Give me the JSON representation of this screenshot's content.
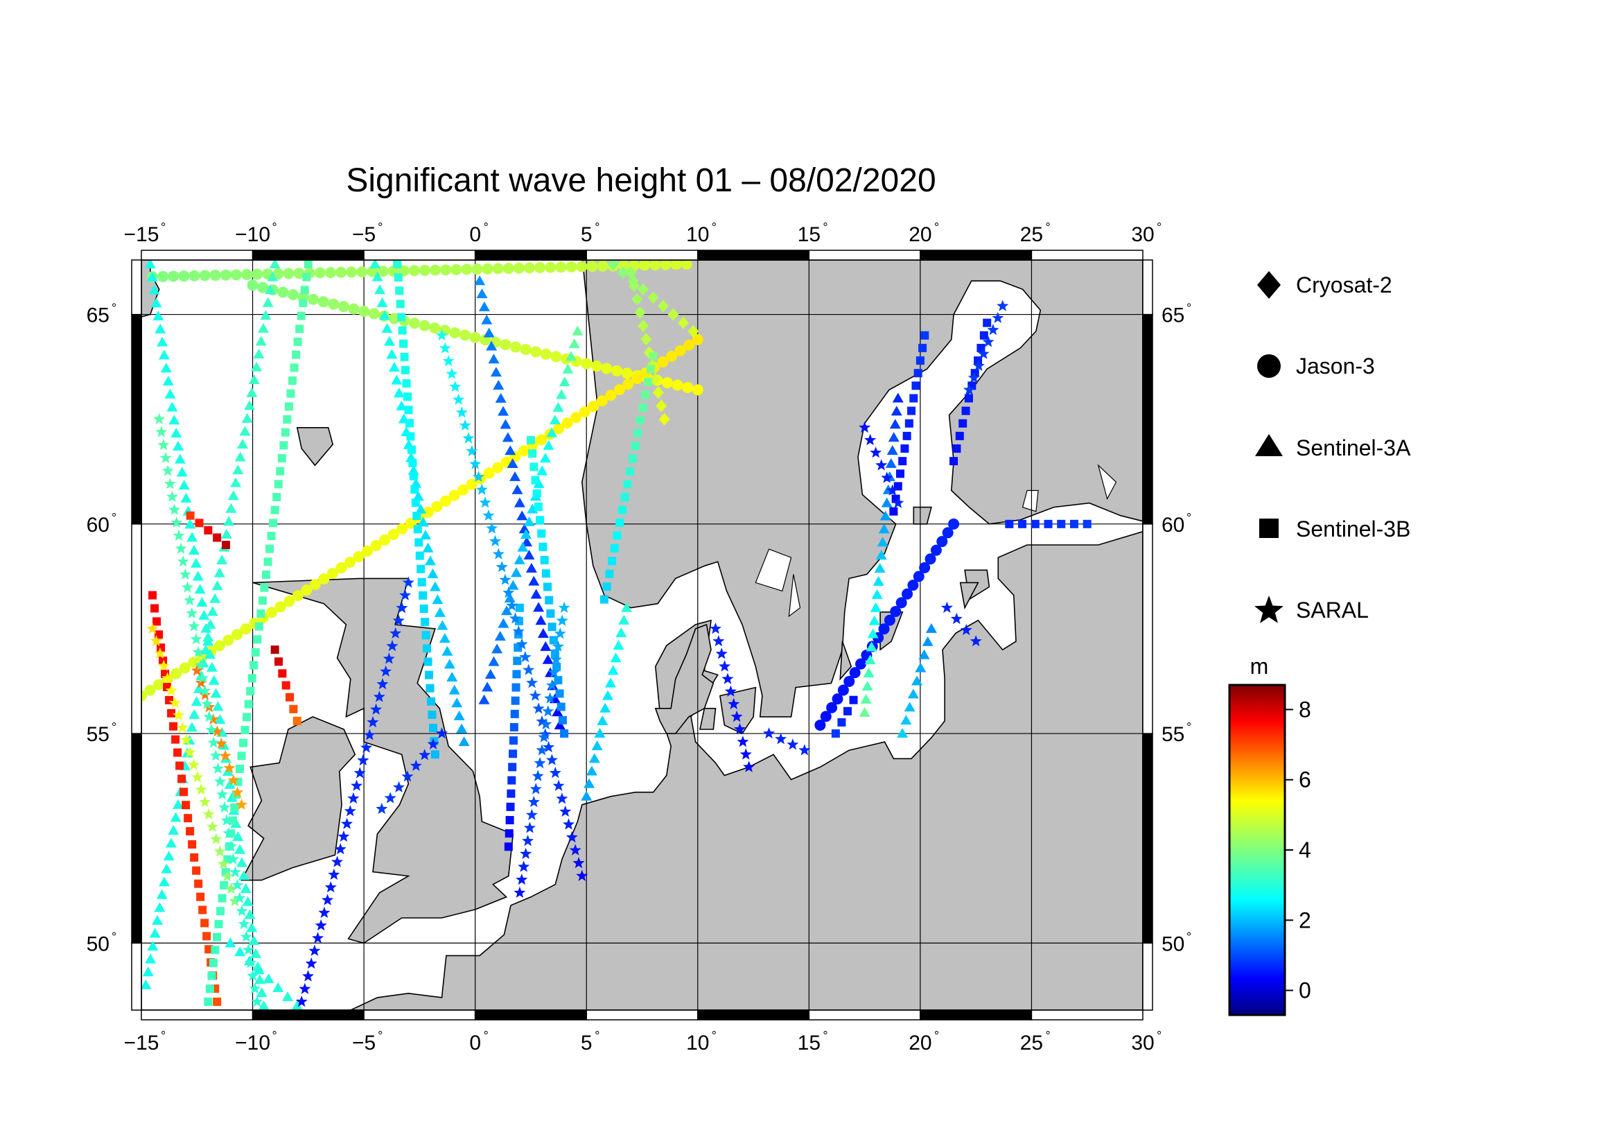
{
  "title": "Significant wave height 01 – 08/02/2020",
  "map": {
    "lon_range": [
      -15,
      30
    ],
    "lat_range": [
      48.4,
      66.3
    ],
    "lon_ticks": [
      -15,
      -10,
      -5,
      0,
      5,
      10,
      15,
      20,
      25,
      30
    ],
    "lat_ticks": [
      50,
      55,
      60,
      65
    ],
    "lon_tick_labels": [
      "−15",
      "−10",
      "−5",
      "0",
      "5",
      "10",
      "15",
      "20",
      "25",
      "30"
    ],
    "lat_tick_labels": [
      "50",
      "55",
      "60",
      "65"
    ],
    "degree_symbol": "°",
    "land_color": "#c0c0c0",
    "water_color": "#ffffff",
    "grid": true
  },
  "legend": {
    "entries": [
      {
        "label": "Cryosat-2",
        "marker": "diamond"
      },
      {
        "label": "Jason-3",
        "marker": "circle"
      },
      {
        "label": "Sentinel-3A",
        "marker": "triangle"
      },
      {
        "label": "Sentinel-3B",
        "marker": "square"
      },
      {
        "label": "SARAL",
        "marker": "star"
      }
    ]
  },
  "colorbar": {
    "unit": "m",
    "min": -0.7,
    "max": 8.7,
    "ticks": [
      0,
      2,
      4,
      6,
      8
    ],
    "tick_labels": [
      "0",
      "2",
      "4",
      "6",
      "8"
    ],
    "colormap": "jet"
  },
  "chart_data": {
    "type": "scatter",
    "x_quantity": "longitude (degrees)",
    "y_quantity": "latitude (degrees)",
    "value_quantity": "significant wave height (m)",
    "series": [
      {
        "name": "Jason-3",
        "marker": "circle",
        "tracks": [
          {
            "from": [
              -14.5,
              65.9
            ],
            "to": [
              9.5,
              66.2
            ],
            "h0": 4.0,
            "h1": 4.8
          },
          {
            "from": [
              -10.0,
              65.7
            ],
            "to": [
              10.0,
              63.2
            ],
            "h0": 4.0,
            "h1": 5.2
          },
          {
            "from": [
              -15.0,
              55.9
            ],
            "to": [
              10.0,
              64.4
            ],
            "h0": 4.8,
            "h1": 5.4
          },
          {
            "from": [
              15.5,
              55.2
            ],
            "to": [
              21.5,
              60.0
            ],
            "h0": 0.6,
            "h1": 0.8
          }
        ]
      },
      {
        "name": "Cryosat-2",
        "marker": "diamond",
        "tracks": [
          {
            "from": [
              6.2,
              66.2
            ],
            "to": [
              9.8,
              64.6
            ],
            "h0": 4.0,
            "h1": 4.8
          },
          {
            "from": [
              7.0,
              66.0
            ],
            "to": [
              8.5,
              62.5
            ],
            "h0": 4.2,
            "h1": 5.0
          }
        ]
      },
      {
        "name": "Sentinel-3A",
        "marker": "triangle",
        "tracks": [
          {
            "from": [
              -14.6,
              66.2
            ],
            "to": [
              -9.5,
              48.5
            ],
            "h0": 3.0,
            "h1": 3.2
          },
          {
            "from": [
              -9.0,
              66.2
            ],
            "to": [
              -14.8,
              49.0
            ],
            "h0": 3.4,
            "h1": 3.0
          },
          {
            "from": [
              -4.5,
              66.2
            ],
            "to": [
              -0.5,
              54.8
            ],
            "h0": 3.2,
            "h1": 2.0
          },
          {
            "from": [
              0.2,
              65.8
            ],
            "to": [
              3.8,
              55.2
            ],
            "h0": 1.8,
            "h1": 0.5
          },
          {
            "from": [
              4.6,
              64.6
            ],
            "to": [
              0.4,
              55.8
            ],
            "h0": 3.8,
            "h1": 1.2
          },
          {
            "from": [
              6.8,
              58.0
            ],
            "to": [
              5.0,
              53.5
            ],
            "h0": 3.2,
            "h1": 2.0
          },
          {
            "from": [
              -11.0,
              50.0
            ],
            "to": [
              -8.0,
              48.5
            ],
            "h0": 3.0,
            "h1": 3.2
          },
          {
            "from": [
              19.0,
              63.0
            ],
            "to": [
              17.5,
              55.5
            ],
            "h0": 0.8,
            "h1": 3.8
          },
          {
            "from": [
              20.5,
              57.5
            ],
            "to": [
              19.2,
              55.0
            ],
            "h0": 1.8,
            "h1": 2.4
          }
        ]
      },
      {
        "name": "Sentinel-3B",
        "marker": "square",
        "tracks": [
          {
            "from": [
              -12.8,
              60.2
            ],
            "to": [
              -11.2,
              59.5
            ],
            "h0": 7.0,
            "h1": 8.2
          },
          {
            "from": [
              -14.5,
              58.3
            ],
            "to": [
              -11.6,
              48.6
            ],
            "h0": 7.6,
            "h1": 6.8
          },
          {
            "from": [
              -9.0,
              57.0
            ],
            "to": [
              -8.0,
              55.3
            ],
            "h0": 8.2,
            "h1": 6.5
          },
          {
            "from": [
              -7.5,
              66.2
            ],
            "to": [
              -12.0,
              48.6
            ],
            "h0": 3.6,
            "h1": 3.4
          },
          {
            "from": [
              -3.5,
              66.2
            ],
            "to": [
              -1.8,
              54.5
            ],
            "h0": 3.2,
            "h1": 2.2
          },
          {
            "from": [
              2.0,
              58.0
            ],
            "to": [
              1.5,
              52.3
            ],
            "h0": 2.2,
            "h1": 0.4
          },
          {
            "from": [
              2.5,
              62.0
            ],
            "to": [
              4.0,
              55.0
            ],
            "h0": 3.2,
            "h1": 1.6
          },
          {
            "from": [
              8.0,
              64.0
            ],
            "to": [
              5.8,
              58.2
            ],
            "h0": 4.0,
            "h1": 2.4
          },
          {
            "from": [
              20.2,
              64.5
            ],
            "to": [
              18.8,
              60.3
            ],
            "h0": 1.0,
            "h1": 0.5
          },
          {
            "from": [
              23.0,
              64.8
            ],
            "to": [
              21.5,
              61.5
            ],
            "h0": 0.8,
            "h1": 0.6
          },
          {
            "from": [
              17.0,
              55.8
            ],
            "to": [
              16.2,
              55.0
            ],
            "h0": 0.6,
            "h1": 1.0
          },
          {
            "from": [
              24.0,
              60.0
            ],
            "to": [
              27.5,
              60.0
            ],
            "h0": 0.8,
            "h1": 1.0
          }
        ]
      },
      {
        "name": "SARAL",
        "marker": "star",
        "tracks": [
          {
            "from": [
              -14.5,
              57.5
            ],
            "to": [
              -10.8,
              51.0
            ],
            "h0": 5.5,
            "h1": 4.0
          },
          {
            "from": [
              -12.5,
              56.5
            ],
            "to": [
              -10.5,
              53.3
            ],
            "h0": 6.5,
            "h1": 6.0
          },
          {
            "from": [
              -14.2,
              62.5
            ],
            "to": [
              -9.8,
              48.6
            ],
            "h0": 3.6,
            "h1": 3.2
          },
          {
            "from": [
              -3.0,
              58.6
            ],
            "to": [
              -7.8,
              48.6
            ],
            "h0": 1.0,
            "h1": 0.6
          },
          {
            "from": [
              -1.5,
              64.5
            ],
            "to": [
              4.8,
              51.6
            ],
            "h0": 3.0,
            "h1": 0.5
          },
          {
            "from": [
              4.0,
              58.0
            ],
            "to": [
              2.0,
              51.2
            ],
            "h0": 2.2,
            "h1": 0.6
          },
          {
            "from": [
              -1.5,
              55.0
            ],
            "to": [
              -4.2,
              53.2
            ],
            "h0": 0.8,
            "h1": 1.0
          },
          {
            "from": [
              10.8,
              57.5
            ],
            "to": [
              12.3,
              54.2
            ],
            "h0": 0.8,
            "h1": 0.5
          },
          {
            "from": [
              13.2,
              55.0
            ],
            "to": [
              14.8,
              54.6
            ],
            "h0": 0.8,
            "h1": 0.8
          },
          {
            "from": [
              17.5,
              62.3
            ],
            "to": [
              19.0,
              60.5
            ],
            "h0": 0.6,
            "h1": 0.8
          },
          {
            "from": [
              23.7,
              65.2
            ],
            "to": [
              22.2,
              63.2
            ],
            "h0": 1.0,
            "h1": 1.0
          },
          {
            "from": [
              21.2,
              58.0
            ],
            "to": [
              22.5,
              57.2
            ],
            "h0": 0.8,
            "h1": 0.8
          }
        ]
      }
    ]
  }
}
